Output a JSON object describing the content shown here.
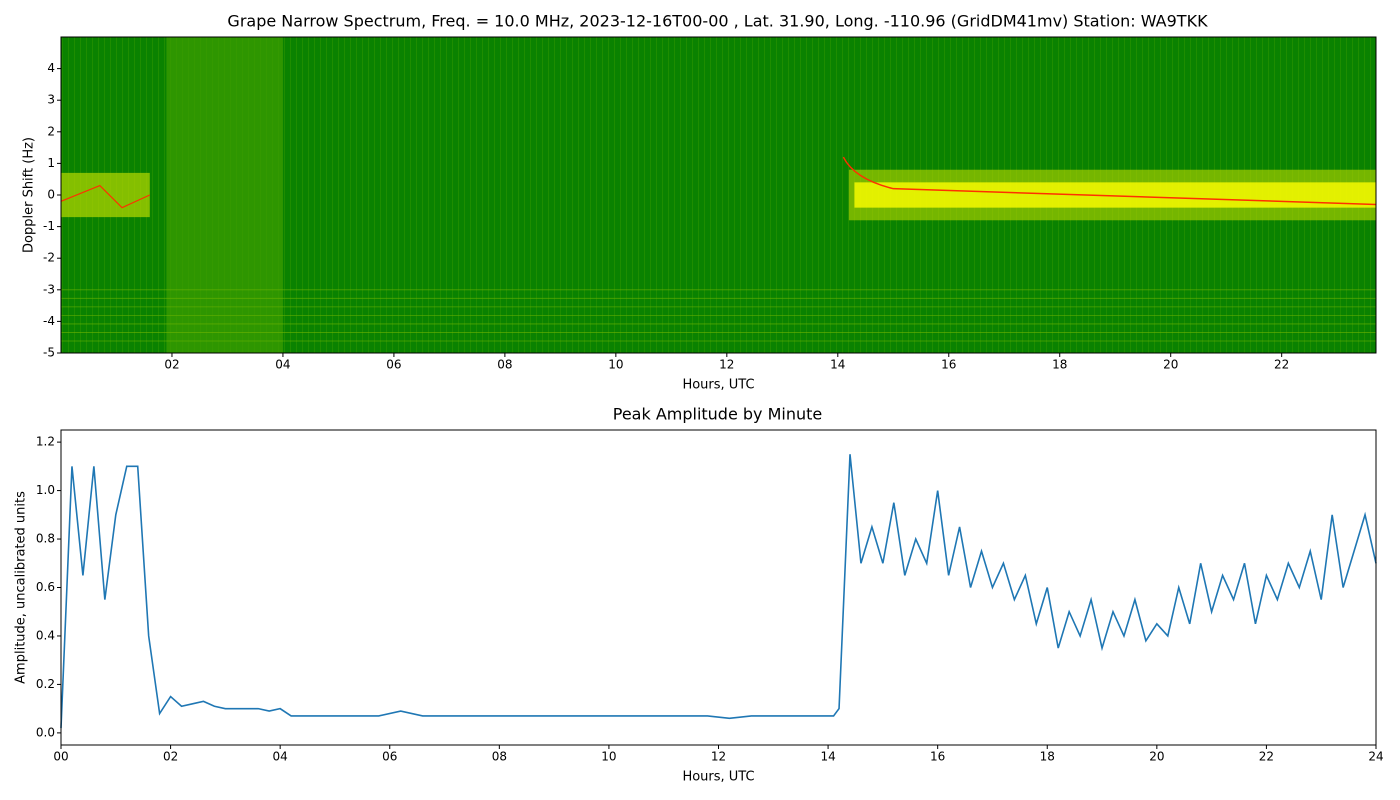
{
  "chart_data": [
    {
      "type": "spectrogram",
      "title": "Grape Narrow Spectrum, Freq. = 10.0 MHz, 2023-12-16T00-00 , Lat.  31.90, Long. -110.96 (GridDM41mv) Station: WA9TKK",
      "x_label": "Hours, UTC",
      "y_label": "Doppler Shift (Hz)",
      "xlim": [
        0,
        23.7
      ],
      "ylim": [
        -5,
        5
      ],
      "xticks": [
        {
          "value": 2,
          "label": "02"
        },
        {
          "value": 4,
          "label": "04"
        },
        {
          "value": 6,
          "label": "06"
        },
        {
          "value": 8,
          "label": "08"
        },
        {
          "value": 10,
          "label": "10"
        },
        {
          "value": 12,
          "label": "12"
        },
        {
          "value": 14,
          "label": "14"
        },
        {
          "value": 16,
          "label": "16"
        },
        {
          "value": 18,
          "label": "18"
        },
        {
          "value": 20,
          "label": "20"
        },
        {
          "value": 22,
          "label": "22"
        }
      ],
      "yticks": [
        -5,
        -4,
        -3,
        -2,
        -1,
        0,
        1,
        2,
        3,
        4
      ]
    },
    {
      "type": "line",
      "title": "Peak Amplitude by Minute",
      "x_label": "Hours, UTC",
      "y_label": "Amplitude, uncalibrated units",
      "xlim": [
        0,
        24
      ],
      "ylim": [
        -0.05,
        1.25
      ],
      "xticks": [
        {
          "value": 0,
          "label": "00"
        },
        {
          "value": 2,
          "label": "02"
        },
        {
          "value": 4,
          "label": "04"
        },
        {
          "value": 6,
          "label": "06"
        },
        {
          "value": 8,
          "label": "08"
        },
        {
          "value": 10,
          "label": "10"
        },
        {
          "value": 12,
          "label": "12"
        },
        {
          "value": 14,
          "label": "14"
        },
        {
          "value": 16,
          "label": "16"
        },
        {
          "value": 18,
          "label": "18"
        },
        {
          "value": 20,
          "label": "20"
        },
        {
          "value": 22,
          "label": "22"
        },
        {
          "value": 24,
          "label": "24"
        }
      ],
      "yticks": [
        {
          "value": 0,
          "label": "0.0"
        },
        0.2,
        0.4,
        0.6,
        0.8,
        {
          "value": 1,
          "label": "1.0"
        },
        1.2
      ],
      "color": "#1f77b4",
      "x": [
        0,
        0.2,
        0.4,
        0.6,
        0.8,
        1.0,
        1.2,
        1.4,
        1.6,
        1.8,
        2.0,
        2.2,
        2.4,
        2.6,
        2.8,
        3.0,
        3.2,
        3.4,
        3.6,
        3.8,
        4.0,
        4.2,
        4.6,
        5.0,
        5.4,
        5.8,
        6.2,
        6.6,
        7.0,
        7.4,
        7.8,
        8.2,
        8.6,
        9.0,
        9.4,
        9.8,
        10.2,
        10.6,
        11.0,
        11.4,
        11.8,
        12.2,
        12.6,
        13.0,
        13.4,
        13.8,
        14.1,
        14.2,
        14.4,
        14.6,
        14.8,
        15.0,
        15.2,
        15.4,
        15.6,
        15.8,
        16.0,
        16.2,
        16.4,
        16.6,
        16.8,
        17.0,
        17.2,
        17.4,
        17.6,
        17.8,
        18.0,
        18.2,
        18.4,
        18.6,
        18.8,
        19.0,
        19.2,
        19.4,
        19.6,
        19.8,
        20.0,
        20.2,
        20.4,
        20.6,
        20.8,
        21.0,
        21.2,
        21.4,
        21.6,
        21.8,
        22.0,
        22.2,
        22.4,
        22.6,
        22.8,
        23.0,
        23.2,
        23.4,
        23.6,
        23.8,
        24.0
      ],
      "values": [
        0.02,
        1.1,
        0.65,
        1.1,
        0.55,
        0.9,
        1.1,
        1.1,
        0.4,
        0.08,
        0.15,
        0.11,
        0.12,
        0.13,
        0.11,
        0.1,
        0.1,
        0.1,
        0.1,
        0.09,
        0.1,
        0.07,
        0.07,
        0.07,
        0.07,
        0.07,
        0.09,
        0.07,
        0.07,
        0.07,
        0.07,
        0.07,
        0.07,
        0.07,
        0.07,
        0.07,
        0.07,
        0.07,
        0.07,
        0.07,
        0.07,
        0.06,
        0.07,
        0.07,
        0.07,
        0.07,
        0.07,
        0.1,
        1.15,
        0.7,
        0.85,
        0.7,
        0.95,
        0.65,
        0.8,
        0.7,
        1.0,
        0.65,
        0.85,
        0.6,
        0.75,
        0.6,
        0.7,
        0.55,
        0.65,
        0.45,
        0.6,
        0.35,
        0.5,
        0.4,
        0.55,
        0.35,
        0.5,
        0.4,
        0.55,
        0.38,
        0.45,
        0.4,
        0.6,
        0.45,
        0.7,
        0.5,
        0.65,
        0.55,
        0.7,
        0.45,
        0.65,
        0.55,
        0.7,
        0.6,
        0.75,
        0.55,
        0.9,
        0.6,
        0.75,
        0.9,
        0.7
      ]
    }
  ]
}
